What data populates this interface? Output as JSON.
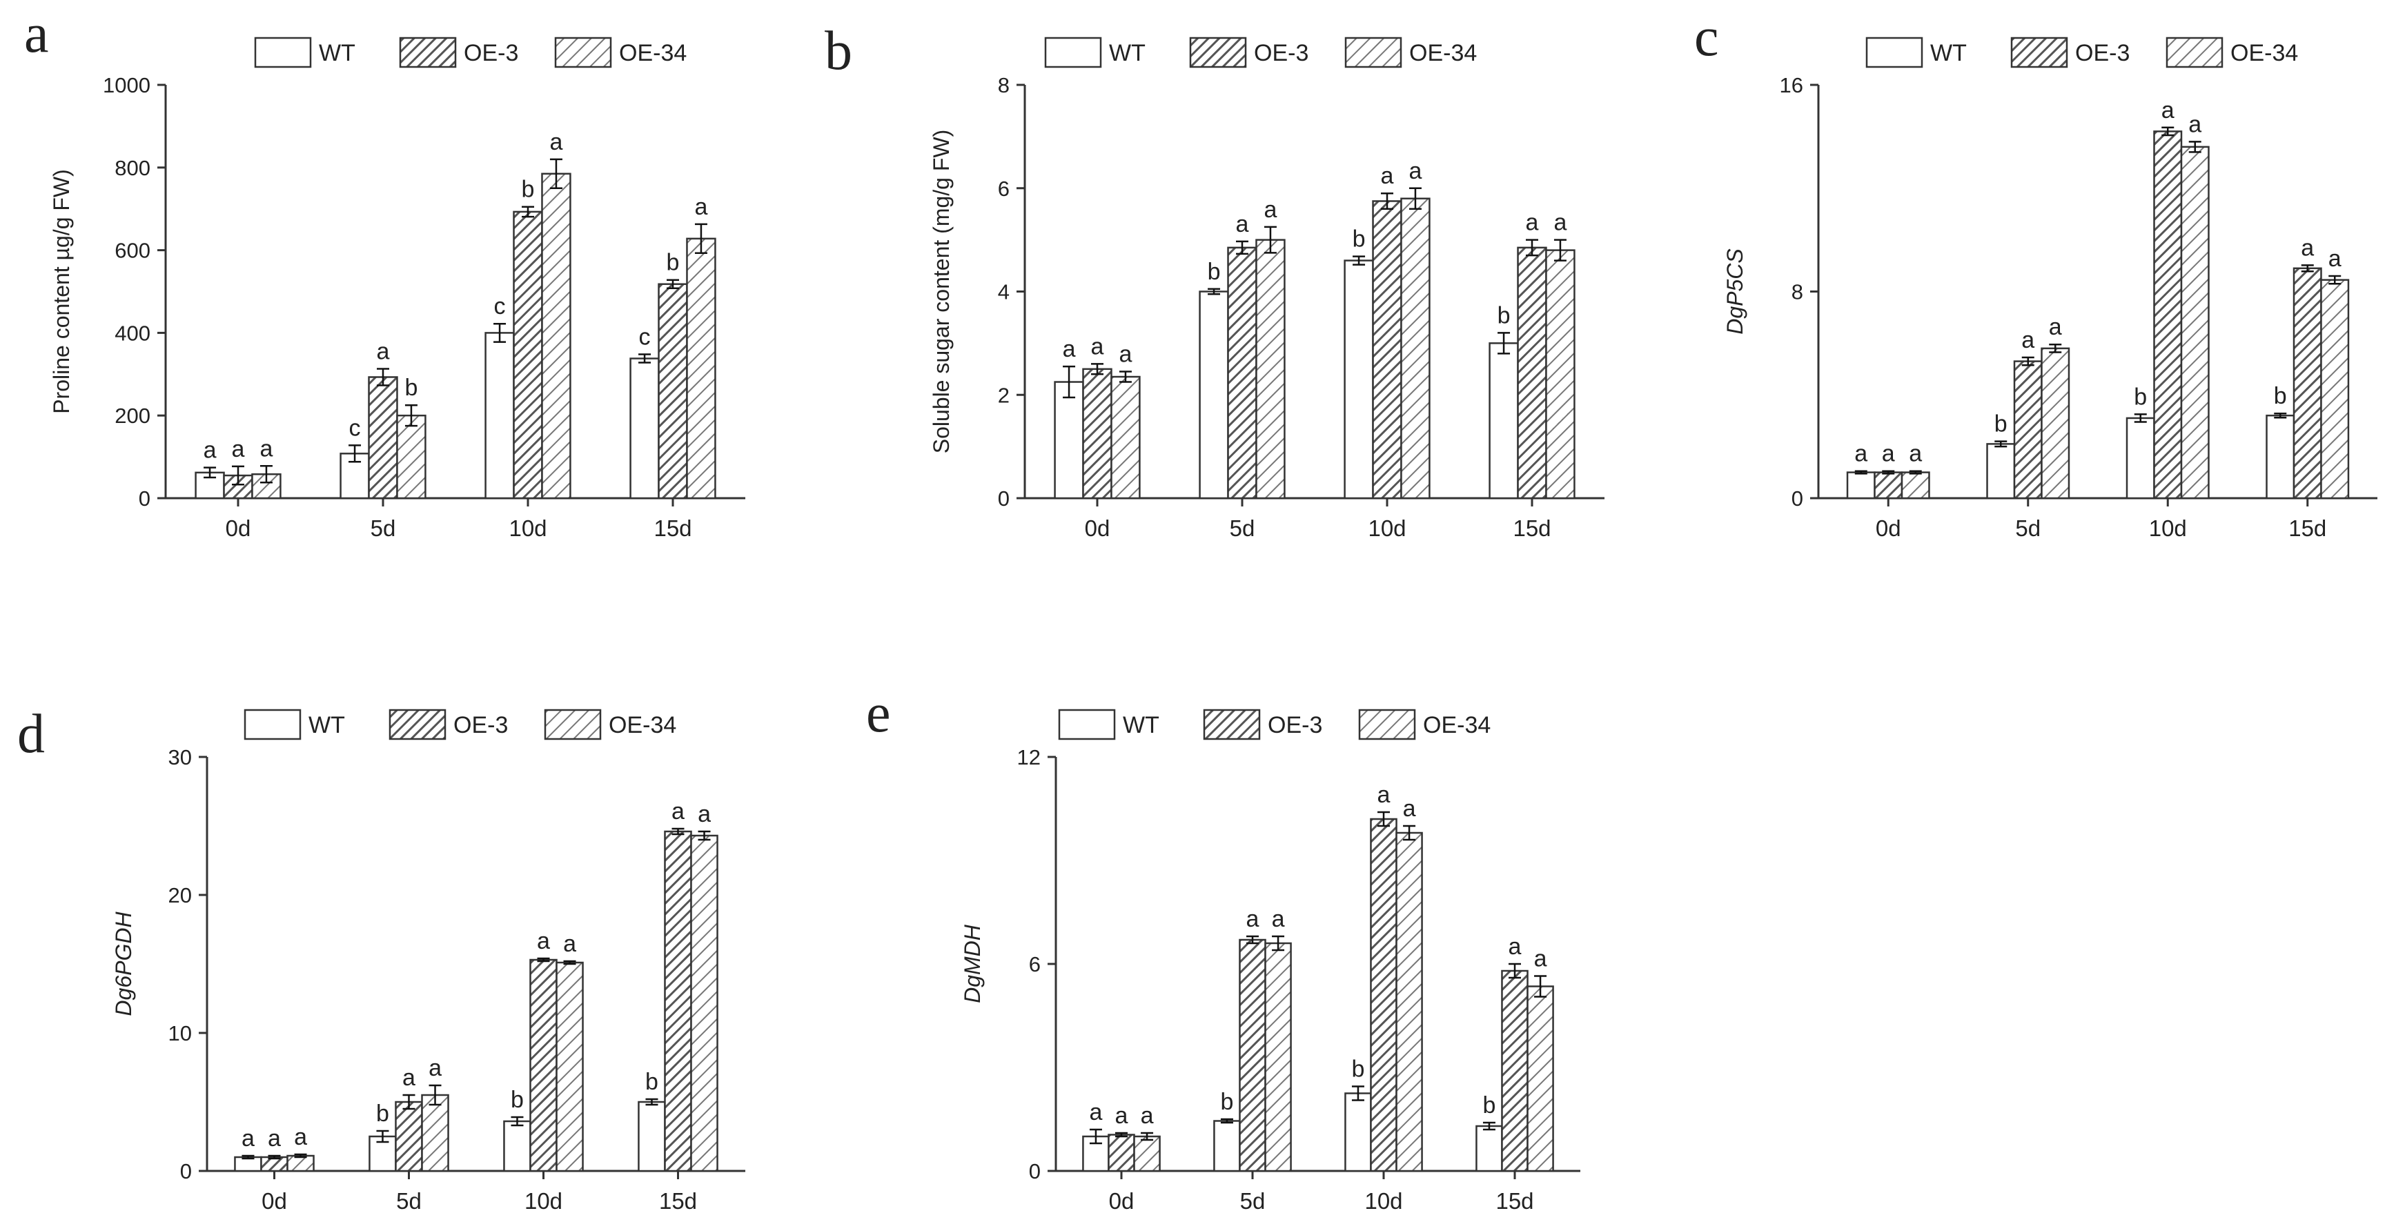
{
  "colors": {
    "axis": "#333333",
    "bar_stroke": "#333333",
    "wt_fill": "#ffffff",
    "oe3_hatch": "#555555",
    "oe34_hatch": "#777777"
  },
  "chart_data": [
    {
      "panel": "a",
      "type": "bar",
      "ylabel": "Proline content µg/g FW)",
      "ylabel_italic": false,
      "categories": [
        "0d",
        "5d",
        "10d",
        "15d"
      ],
      "ylim": [
        0,
        1000
      ],
      "yticks": [
        0,
        200,
        400,
        600,
        800,
        1000
      ],
      "legend": [
        "WT",
        "OE-3",
        "OE-34"
      ],
      "series": [
        {
          "name": "WT",
          "values": [
            62,
            108,
            400,
            338
          ],
          "errors": [
            12,
            20,
            22,
            10
          ],
          "letters": [
            "a",
            "c",
            "c",
            "c"
          ]
        },
        {
          "name": "OE-3",
          "values": [
            55,
            293,
            693,
            518
          ],
          "errors": [
            22,
            20,
            12,
            10
          ],
          "letters": [
            "a",
            "a",
            "b",
            "b"
          ]
        },
        {
          "name": "OE-34",
          "values": [
            58,
            200,
            785,
            628
          ],
          "errors": [
            20,
            25,
            35,
            35
          ],
          "letters": [
            "a",
            "b",
            "a",
            "a"
          ]
        }
      ]
    },
    {
      "panel": "b",
      "type": "bar",
      "ylabel": "Soluble sugar content (mg/g FW)",
      "ylabel_italic": false,
      "categories": [
        "0d",
        "5d",
        "10d",
        "15d"
      ],
      "ylim": [
        0,
        8
      ],
      "yticks": [
        0,
        2,
        4,
        6,
        8
      ],
      "legend": [
        "WT",
        "OE-3",
        "OE-34"
      ],
      "series": [
        {
          "name": "WT",
          "values": [
            2.25,
            4.0,
            4.6,
            3.0
          ],
          "errors": [
            0.3,
            0.05,
            0.08,
            0.2
          ],
          "letters": [
            "a",
            "b",
            "b",
            "b"
          ]
        },
        {
          "name": "OE-3",
          "values": [
            2.5,
            4.85,
            5.75,
            4.85
          ],
          "errors": [
            0.1,
            0.12,
            0.15,
            0.15
          ],
          "letters": [
            "a",
            "a",
            "a",
            "a"
          ]
        },
        {
          "name": "OE-34",
          "values": [
            2.35,
            5.0,
            5.8,
            4.8
          ],
          "errors": [
            0.1,
            0.25,
            0.2,
            0.2
          ],
          "letters": [
            "a",
            "a",
            "a",
            "a"
          ]
        }
      ]
    },
    {
      "panel": "c",
      "type": "bar",
      "ylabel": "DgP5CS",
      "ylabel_italic": true,
      "categories": [
        "0d",
        "5d",
        "10d",
        "15d"
      ],
      "ylim": [
        0,
        16
      ],
      "yticks": [
        0,
        8,
        16
      ],
      "legend": [
        "WT",
        "OE-3",
        "OE-34"
      ],
      "series": [
        {
          "name": "WT",
          "values": [
            1.0,
            2.1,
            3.1,
            3.2
          ],
          "errors": [
            0.05,
            0.1,
            0.15,
            0.08
          ],
          "letters": [
            "a",
            "b",
            "b",
            "b"
          ]
        },
        {
          "name": "OE-3",
          "values": [
            1.0,
            5.3,
            14.2,
            8.9
          ],
          "errors": [
            0.05,
            0.15,
            0.15,
            0.12
          ],
          "letters": [
            "a",
            "a",
            "a",
            "a"
          ]
        },
        {
          "name": "OE-34",
          "values": [
            1.0,
            5.8,
            13.6,
            8.45
          ],
          "errors": [
            0.05,
            0.15,
            0.2,
            0.15
          ],
          "letters": [
            "a",
            "a",
            "a",
            "a"
          ]
        }
      ]
    },
    {
      "panel": "d",
      "type": "bar",
      "ylabel": "Dg6PGDH",
      "ylabel_italic": true,
      "categories": [
        "0d",
        "5d",
        "10d",
        "15d"
      ],
      "ylim": [
        0,
        30
      ],
      "yticks": [
        0,
        10,
        20,
        30
      ],
      "legend": [
        "WT",
        "OE-3",
        "OE-34"
      ],
      "series": [
        {
          "name": "WT",
          "values": [
            1.0,
            2.5,
            3.6,
            5.0
          ],
          "errors": [
            0.1,
            0.4,
            0.3,
            0.2
          ],
          "letters": [
            "a",
            "b",
            "b",
            "b"
          ]
        },
        {
          "name": "OE-3",
          "values": [
            1.0,
            5.0,
            15.3,
            24.6
          ],
          "errors": [
            0.1,
            0.5,
            0.1,
            0.2
          ],
          "letters": [
            "a",
            "a",
            "a",
            "a"
          ]
        },
        {
          "name": "OE-34",
          "values": [
            1.1,
            5.5,
            15.1,
            24.3
          ],
          "errors": [
            0.1,
            0.7,
            0.1,
            0.3
          ],
          "letters": [
            "a",
            "a",
            "a",
            "a"
          ]
        }
      ]
    },
    {
      "panel": "e",
      "type": "bar",
      "ylabel": "DgMDH",
      "ylabel_italic": true,
      "categories": [
        "0d",
        "5d",
        "10d",
        "15d"
      ],
      "ylim": [
        0,
        12
      ],
      "yticks": [
        0,
        6,
        12
      ],
      "legend": [
        "WT",
        "OE-3",
        "OE-34"
      ],
      "series": [
        {
          "name": "WT",
          "values": [
            1.0,
            1.45,
            2.25,
            1.3
          ],
          "errors": [
            0.2,
            0.05,
            0.2,
            0.1
          ],
          "letters": [
            "a",
            "b",
            "b",
            "b"
          ]
        },
        {
          "name": "OE-3",
          "values": [
            1.05,
            6.7,
            10.2,
            5.8
          ],
          "errors": [
            0.05,
            0.1,
            0.2,
            0.2
          ],
          "letters": [
            "a",
            "a",
            "a",
            "a"
          ]
        },
        {
          "name": "OE-34",
          "values": [
            1.0,
            6.6,
            9.8,
            5.35
          ],
          "errors": [
            0.1,
            0.2,
            0.2,
            0.3
          ],
          "letters": [
            "a",
            "a",
            "a",
            "a"
          ]
        }
      ]
    }
  ]
}
